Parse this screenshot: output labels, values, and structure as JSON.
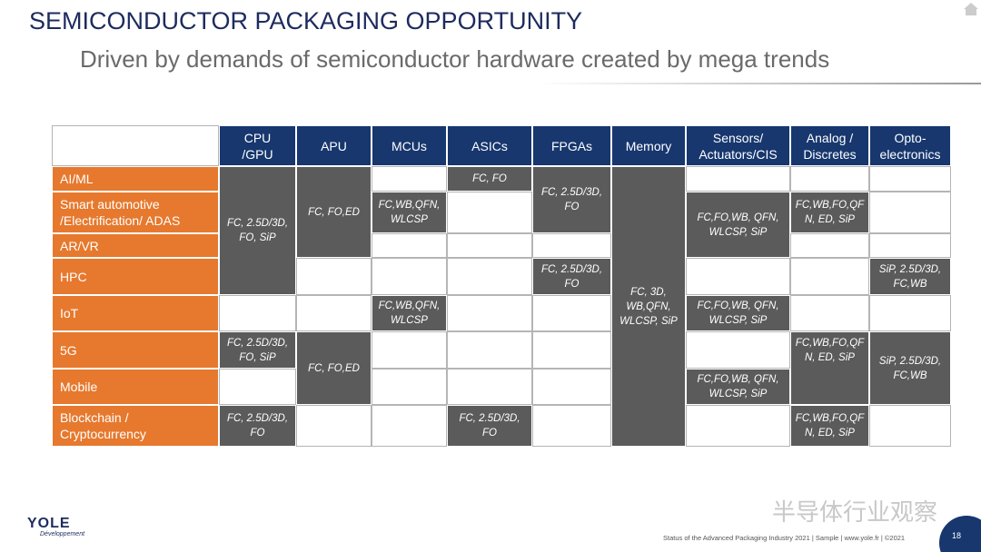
{
  "header": {
    "title": "SEMICONDUCTOR PACKAGING OPPORTUNITY",
    "subtitle": "Driven by demands of semiconductor hardware created by mega trends"
  },
  "table": {
    "columns": [
      "CPU\n/GPU",
      "APU",
      "MCUs",
      "ASICs",
      "FPGAs",
      "Memory",
      "Sensors/\nActuators/CIS",
      "Analog /\nDiscretes",
      "Opto-\nelectronics"
    ],
    "rows": [
      "AI/ML",
      "Smart automotive\n/Electrification/ ADAS",
      "AR/VR",
      "HPC",
      "IoT",
      "5G",
      "Mobile",
      "Blockchain /\nCryptocurrency"
    ],
    "cells": [
      "FC, 2.5D/3D,\nFO, SiP",
      "FC, 2.5D/3D,\nFO, SiP",
      "FC, 2.5D/3D,\nFO",
      "FC, FO,ED",
      "FC, FO,ED",
      "FC,WB,QFN,\nWLCSP",
      "FC,WB,QFN,\nWLCSP",
      "FC, FO",
      "FC, 2.5D/3D,\nFO",
      "FC, 2.5D/3D,\nFO",
      "FC, 2.5D/3D,\nFO",
      "FC, 3D,\nWB,QFN,\nWLCSP, SiP",
      "FC,FO,WB, QFN,\nWLCSP, SiP",
      "FC,FO,WB, QFN,\nWLCSP, SiP",
      "FC,FO,WB, QFN,\nWLCSP, SiP",
      "FC,WB,FO,QF\nN, ED, SiP",
      "FC,WB,FO,QF\nN, ED, SiP",
      "FC,WB,FO,QF\nN, ED, SiP",
      "SiP, 2.5D/3D,\nFC,WB",
      "SiP, 2.5D/3D,\nFC,WB"
    ]
  },
  "footer": {
    "logo": "YOLE",
    "logo_sub": "Développement",
    "watermark": "半导体行业观察",
    "source": "Status of the Advanced Packaging Industry 2021 | Sample | www.yole.fr | ©2021",
    "page": "18"
  }
}
